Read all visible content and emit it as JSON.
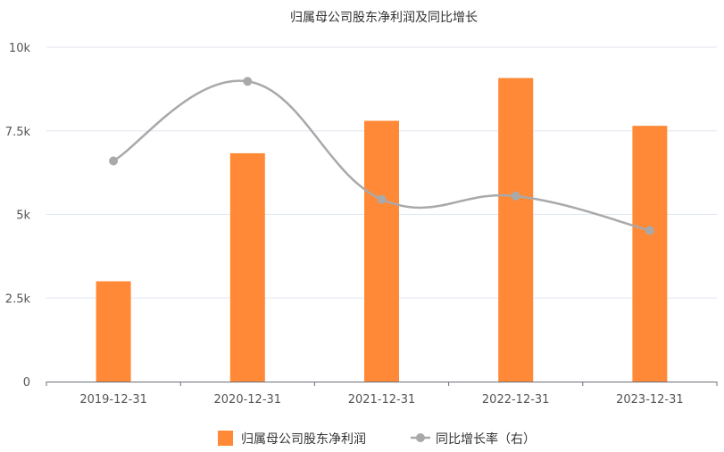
{
  "chart_data": {
    "type": "bar",
    "title": "归属母公司股东净利润及同比增长",
    "categories": [
      "2019-12-31",
      "2020-12-31",
      "2021-12-31",
      "2022-12-31",
      "2023-12-31"
    ],
    "ylim": [
      0,
      10000
    ],
    "yticks": [
      {
        "value": 0,
        "label": "0"
      },
      {
        "value": 2500,
        "label": "2.5k"
      },
      {
        "value": 5000,
        "label": "5k"
      },
      {
        "value": 7500,
        "label": "7.5k"
      },
      {
        "value": 10000,
        "label": "10k"
      }
    ],
    "grid": true,
    "legend_position": "bottom-center",
    "series": [
      {
        "name": "归属母公司股东净利润",
        "kind": "bar",
        "axis": "left",
        "color": "#FF8936",
        "values": [
          3000,
          6830,
          7800,
          9080,
          7650
        ]
      },
      {
        "name": "同比增长率（右）",
        "kind": "line",
        "axis": "right",
        "color": "#A9A9A9",
        "values": [
          6600,
          8980,
          5450,
          5550,
          4520
        ]
      }
    ]
  }
}
